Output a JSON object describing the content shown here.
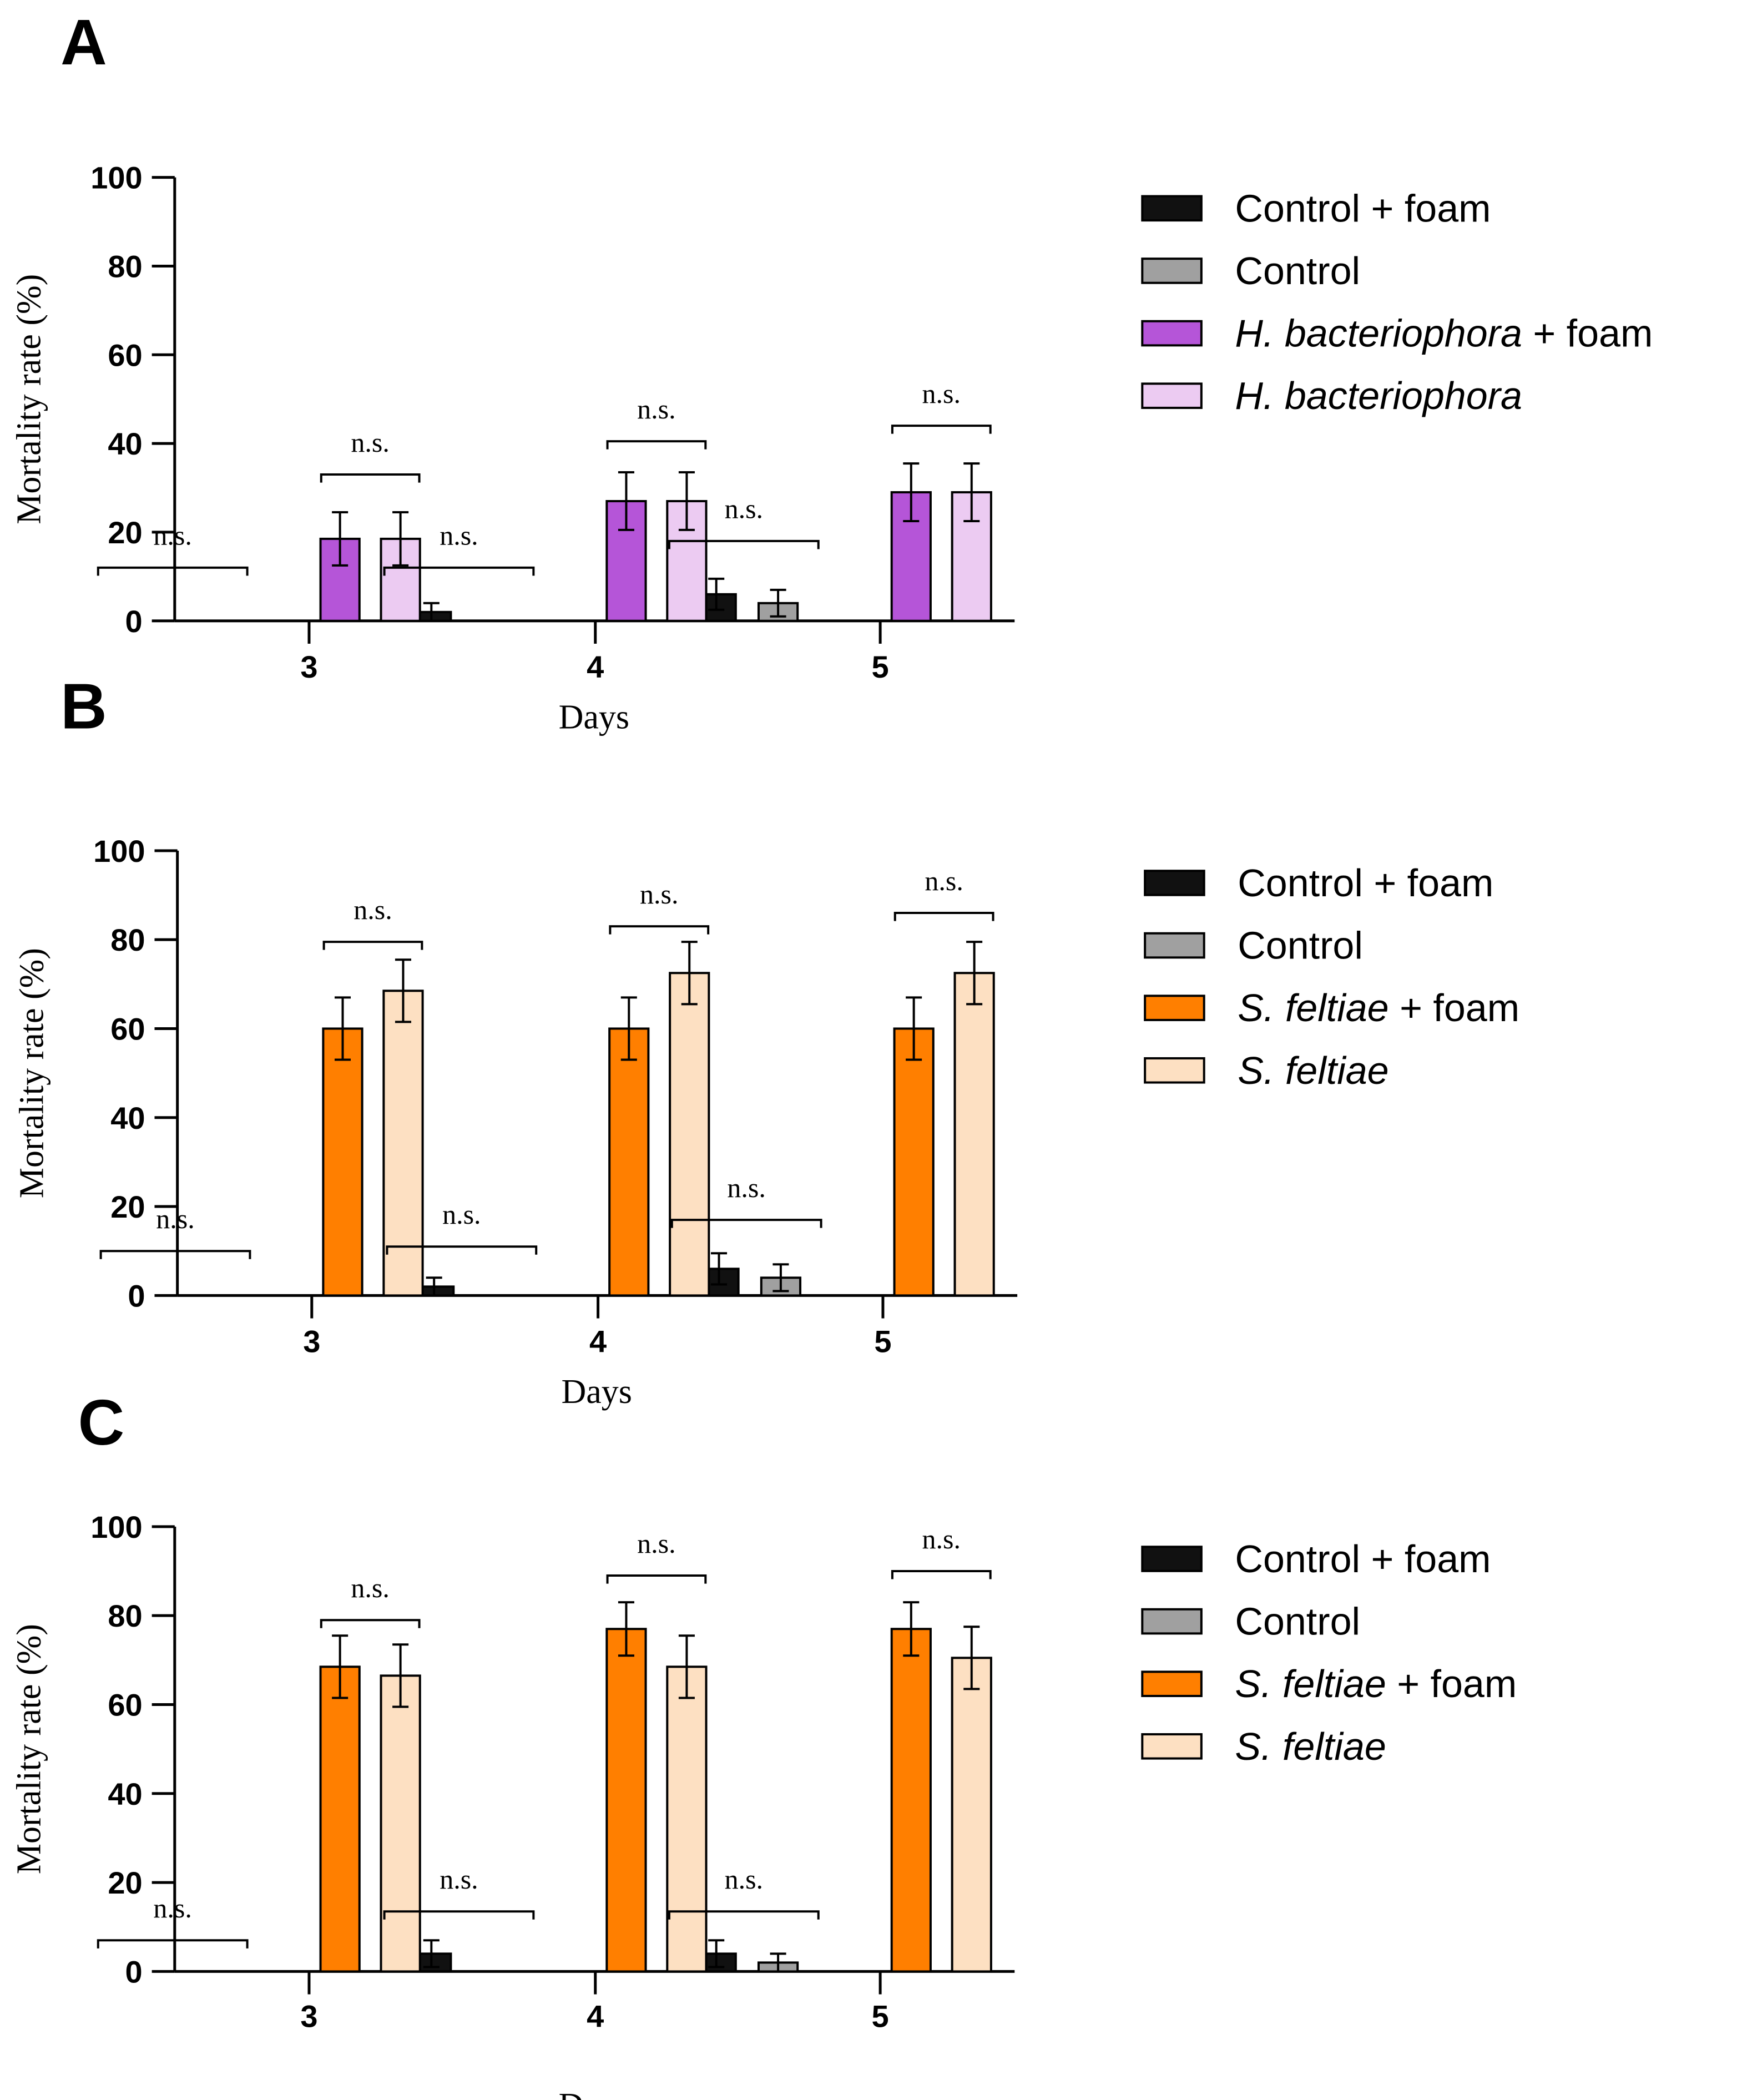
{
  "chart_data": [
    {
      "panel": "A",
      "type": "bar",
      "xlabel": "Days",
      "ylabel": "Mortality rate (%)",
      "ylim": [
        0,
        100
      ],
      "yticks": [
        "0",
        "20",
        "40",
        "60",
        "80",
        "100"
      ],
      "categories": [
        "3",
        "4",
        "5"
      ],
      "series": [
        {
          "name": "Control + foam",
          "color": "#111111",
          "values": [
            0,
            2,
            6
          ],
          "errors": [
            0,
            2,
            3.5
          ]
        },
        {
          "name": "Control",
          "color": "#a0a0a0",
          "values": [
            0,
            0,
            4
          ],
          "errors": [
            0,
            0,
            3
          ]
        },
        {
          "name": "H. bacteriophora + foam",
          "name_italic": "H. bacteriophora",
          "name_suffix": " + foam",
          "color": "#b555d8",
          "values": [
            18.5,
            27,
            29
          ],
          "errors": [
            6,
            6.5,
            6.5
          ]
        },
        {
          "name": "H. bacteriophora",
          "name_italic": "H. bacteriophora",
          "name_suffix": "",
          "color": "#eccbf2",
          "values": [
            18.5,
            27,
            29
          ],
          "errors": [
            6,
            6.5,
            6.5
          ]
        }
      ],
      "significance": [
        {
          "category": "3",
          "pair": "controls",
          "label": "n.s.",
          "level": 12
        },
        {
          "category": "3",
          "pair": "treatments",
          "label": "n.s.",
          "level": 33
        },
        {
          "category": "4",
          "pair": "controls",
          "label": "n.s.",
          "level": 12
        },
        {
          "category": "4",
          "pair": "treatments",
          "label": "n.s.",
          "level": 40.5
        },
        {
          "category": "5",
          "pair": "controls",
          "label": "n.s.",
          "level": 18
        },
        {
          "category": "5",
          "pair": "treatments",
          "label": "n.s.",
          "level": 44
        }
      ]
    },
    {
      "panel": "B",
      "type": "bar",
      "xlabel": "Days",
      "ylabel": "Mortality rate (%)",
      "ylim": [
        0,
        100
      ],
      "yticks": [
        "0",
        "20",
        "40",
        "60",
        "80",
        "100"
      ],
      "categories": [
        "3",
        "4",
        "5"
      ],
      "series": [
        {
          "name": "Control + foam",
          "color": "#111111",
          "values": [
            0,
            2,
            6
          ],
          "errors": [
            0,
            2,
            3.5
          ]
        },
        {
          "name": "Control",
          "color": "#a0a0a0",
          "values": [
            0,
            0,
            4
          ],
          "errors": [
            0,
            0,
            3
          ]
        },
        {
          "name": "S. feltiae + foam",
          "name_italic": "S. feltiae",
          "name_suffix": " + foam",
          "color": "#ff7f00",
          "values": [
            60,
            60,
            60
          ],
          "errors": [
            7,
            7,
            7
          ]
        },
        {
          "name": "S. feltiae",
          "name_italic": "S. feltiae",
          "name_suffix": "",
          "color": "#fde0c2",
          "values": [
            68.5,
            72.5,
            72.5
          ],
          "errors": [
            7,
            7,
            7
          ]
        }
      ],
      "significance": [
        {
          "category": "3",
          "pair": "controls",
          "label": "n.s.",
          "level": 10
        },
        {
          "category": "3",
          "pair": "treatments",
          "label": "n.s.",
          "level": 79.5
        },
        {
          "category": "4",
          "pair": "controls",
          "label": "n.s.",
          "level": 11
        },
        {
          "category": "4",
          "pair": "treatments",
          "label": "n.s.",
          "level": 83
        },
        {
          "category": "5",
          "pair": "controls",
          "label": "n.s.",
          "level": 17
        },
        {
          "category": "5",
          "pair": "treatments",
          "label": "n.s.",
          "level": 86
        }
      ]
    },
    {
      "panel": "C",
      "type": "bar",
      "xlabel": "Days",
      "ylabel": "Mortality rate (%)",
      "ylim": [
        0,
        100
      ],
      "yticks": [
        "0",
        "20",
        "40",
        "60",
        "80",
        "100"
      ],
      "categories": [
        "3",
        "4",
        "5"
      ],
      "series": [
        {
          "name": "Control + foam",
          "color": "#111111",
          "values": [
            0,
            4,
            4
          ],
          "errors": [
            0,
            3,
            3
          ]
        },
        {
          "name": "Control",
          "color": "#a0a0a0",
          "values": [
            0,
            0,
            2
          ],
          "errors": [
            0,
            0,
            2
          ]
        },
        {
          "name": "S. feltiae + foam",
          "name_italic": "S. feltiae",
          "name_suffix": " + foam",
          "color": "#ff7f00",
          "values": [
            68.5,
            77,
            77
          ],
          "errors": [
            7,
            6,
            6
          ]
        },
        {
          "name": "S. feltiae",
          "name_italic": "S. feltiae",
          "name_suffix": "",
          "color": "#fde0c2",
          "values": [
            66.5,
            68.5,
            70.5
          ],
          "errors": [
            7,
            7,
            7
          ]
        }
      ],
      "significance": [
        {
          "category": "3",
          "pair": "controls",
          "label": "n.s.",
          "level": 7
        },
        {
          "category": "3",
          "pair": "treatments",
          "label": "n.s.",
          "level": 79
        },
        {
          "category": "4",
          "pair": "controls",
          "label": "n.s.",
          "level": 13.5
        },
        {
          "category": "4",
          "pair": "treatments",
          "label": "n.s.",
          "level": 89
        },
        {
          "category": "5",
          "pair": "controls",
          "label": "n.s.",
          "level": 13.5
        },
        {
          "category": "5",
          "pair": "treatments",
          "label": "n.s.",
          "level": 90
        }
      ]
    }
  ]
}
